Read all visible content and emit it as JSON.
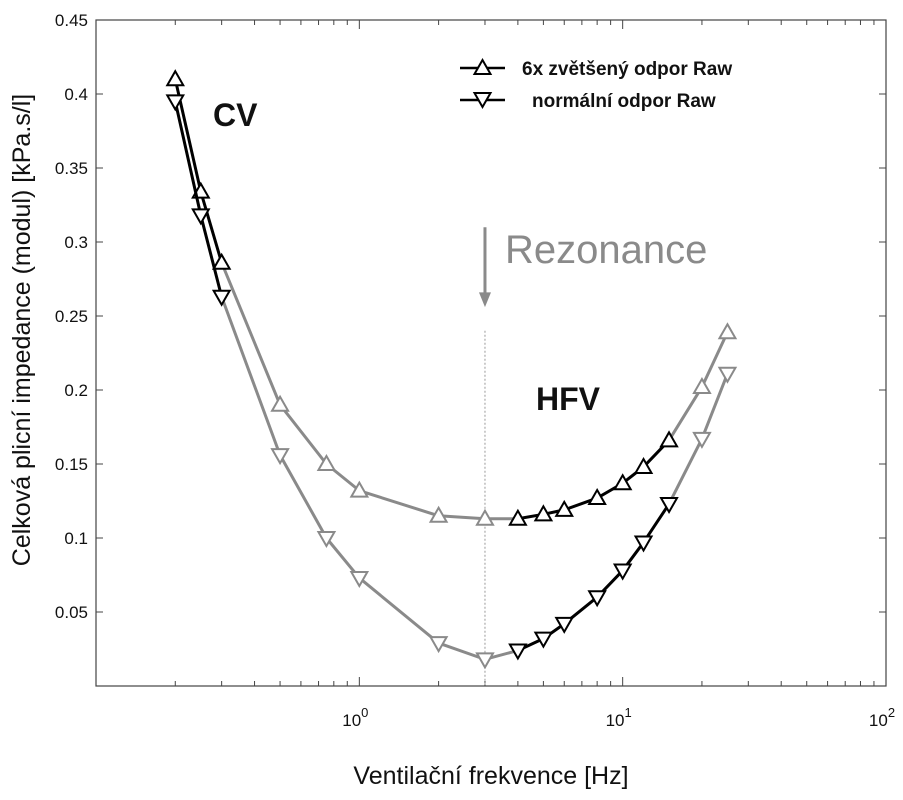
{
  "chart_data": {
    "type": "line",
    "xlabel": "Ventilační frekvence [Hz]",
    "ylabel": "Celková plicní impedance (modul) [kPa.s/l]",
    "x_scale": "log",
    "xlim": [
      0.1,
      100
    ],
    "ylim": [
      0,
      0.45
    ],
    "x_ticks": [
      {
        "base": "10",
        "exp": "0",
        "value": 1
      },
      {
        "base": "10",
        "exp": "1",
        "value": 10
      },
      {
        "base": "10",
        "exp": "2",
        "value": 100
      }
    ],
    "y_ticks": [
      {
        "label": "0.05",
        "value": 0.05
      },
      {
        "label": "0.1",
        "value": 0.1
      },
      {
        "label": "0.15",
        "value": 0.15
      },
      {
        "label": "0.2",
        "value": 0.2
      },
      {
        "label": "0.25",
        "value": 0.25
      },
      {
        "label": "0.3",
        "value": 0.3
      },
      {
        "label": "0.35",
        "value": 0.35
      },
      {
        "label": "0.4",
        "value": 0.4
      },
      {
        "label": "0.45",
        "value": 0.45
      }
    ],
    "grid": false,
    "legend_position": "top-right",
    "series": [
      {
        "name": "6x zvětšený odpor Raw",
        "marker": "triangle-up",
        "x": [
          0.2,
          0.25,
          0.3,
          0.5,
          0.75,
          1.0,
          2.0,
          3.0,
          4.0,
          5.0,
          6.0,
          8.0,
          10.0,
          12.0,
          15.0,
          20.0,
          25.0
        ],
        "y": [
          0.41,
          0.334,
          0.286,
          0.19,
          0.15,
          0.132,
          0.115,
          0.113,
          0.113,
          0.116,
          0.119,
          0.127,
          0.137,
          0.148,
          0.166,
          0.202,
          0.239
        ],
        "colors": [
          "#000000",
          "#000000",
          "#000000",
          "#8a8a8a",
          "#8a8a8a",
          "#8a8a8a",
          "#8a8a8a",
          "#8a8a8a",
          "#000000",
          "#000000",
          "#000000",
          "#000000",
          "#000000",
          "#000000",
          "#000000",
          "#8a8a8a",
          "#8a8a8a"
        ]
      },
      {
        "name": "normální odpor Raw",
        "marker": "triangle-down",
        "x": [
          0.2,
          0.25,
          0.3,
          0.5,
          0.75,
          1.0,
          2.0,
          3.0,
          4.0,
          5.0,
          6.0,
          8.0,
          10.0,
          12.0,
          15.0,
          20.0,
          25.0
        ],
        "y": [
          0.395,
          0.318,
          0.263,
          0.156,
          0.1,
          0.073,
          0.029,
          0.018,
          0.024,
          0.032,
          0.042,
          0.06,
          0.078,
          0.097,
          0.123,
          0.167,
          0.211
        ],
        "colors": [
          "#000000",
          "#000000",
          "#000000",
          "#8a8a8a",
          "#8a8a8a",
          "#8a8a8a",
          "#8a8a8a",
          "#8a8a8a",
          "#000000",
          "#000000",
          "#000000",
          "#000000",
          "#000000",
          "#000000",
          "#000000",
          "#8a8a8a",
          "#8a8a8a"
        ]
      }
    ],
    "annotations": {
      "cv_label": "CV",
      "hfv_label": "HFV",
      "resonance_label": "Rezonance",
      "resonance_x": 3.0
    }
  }
}
